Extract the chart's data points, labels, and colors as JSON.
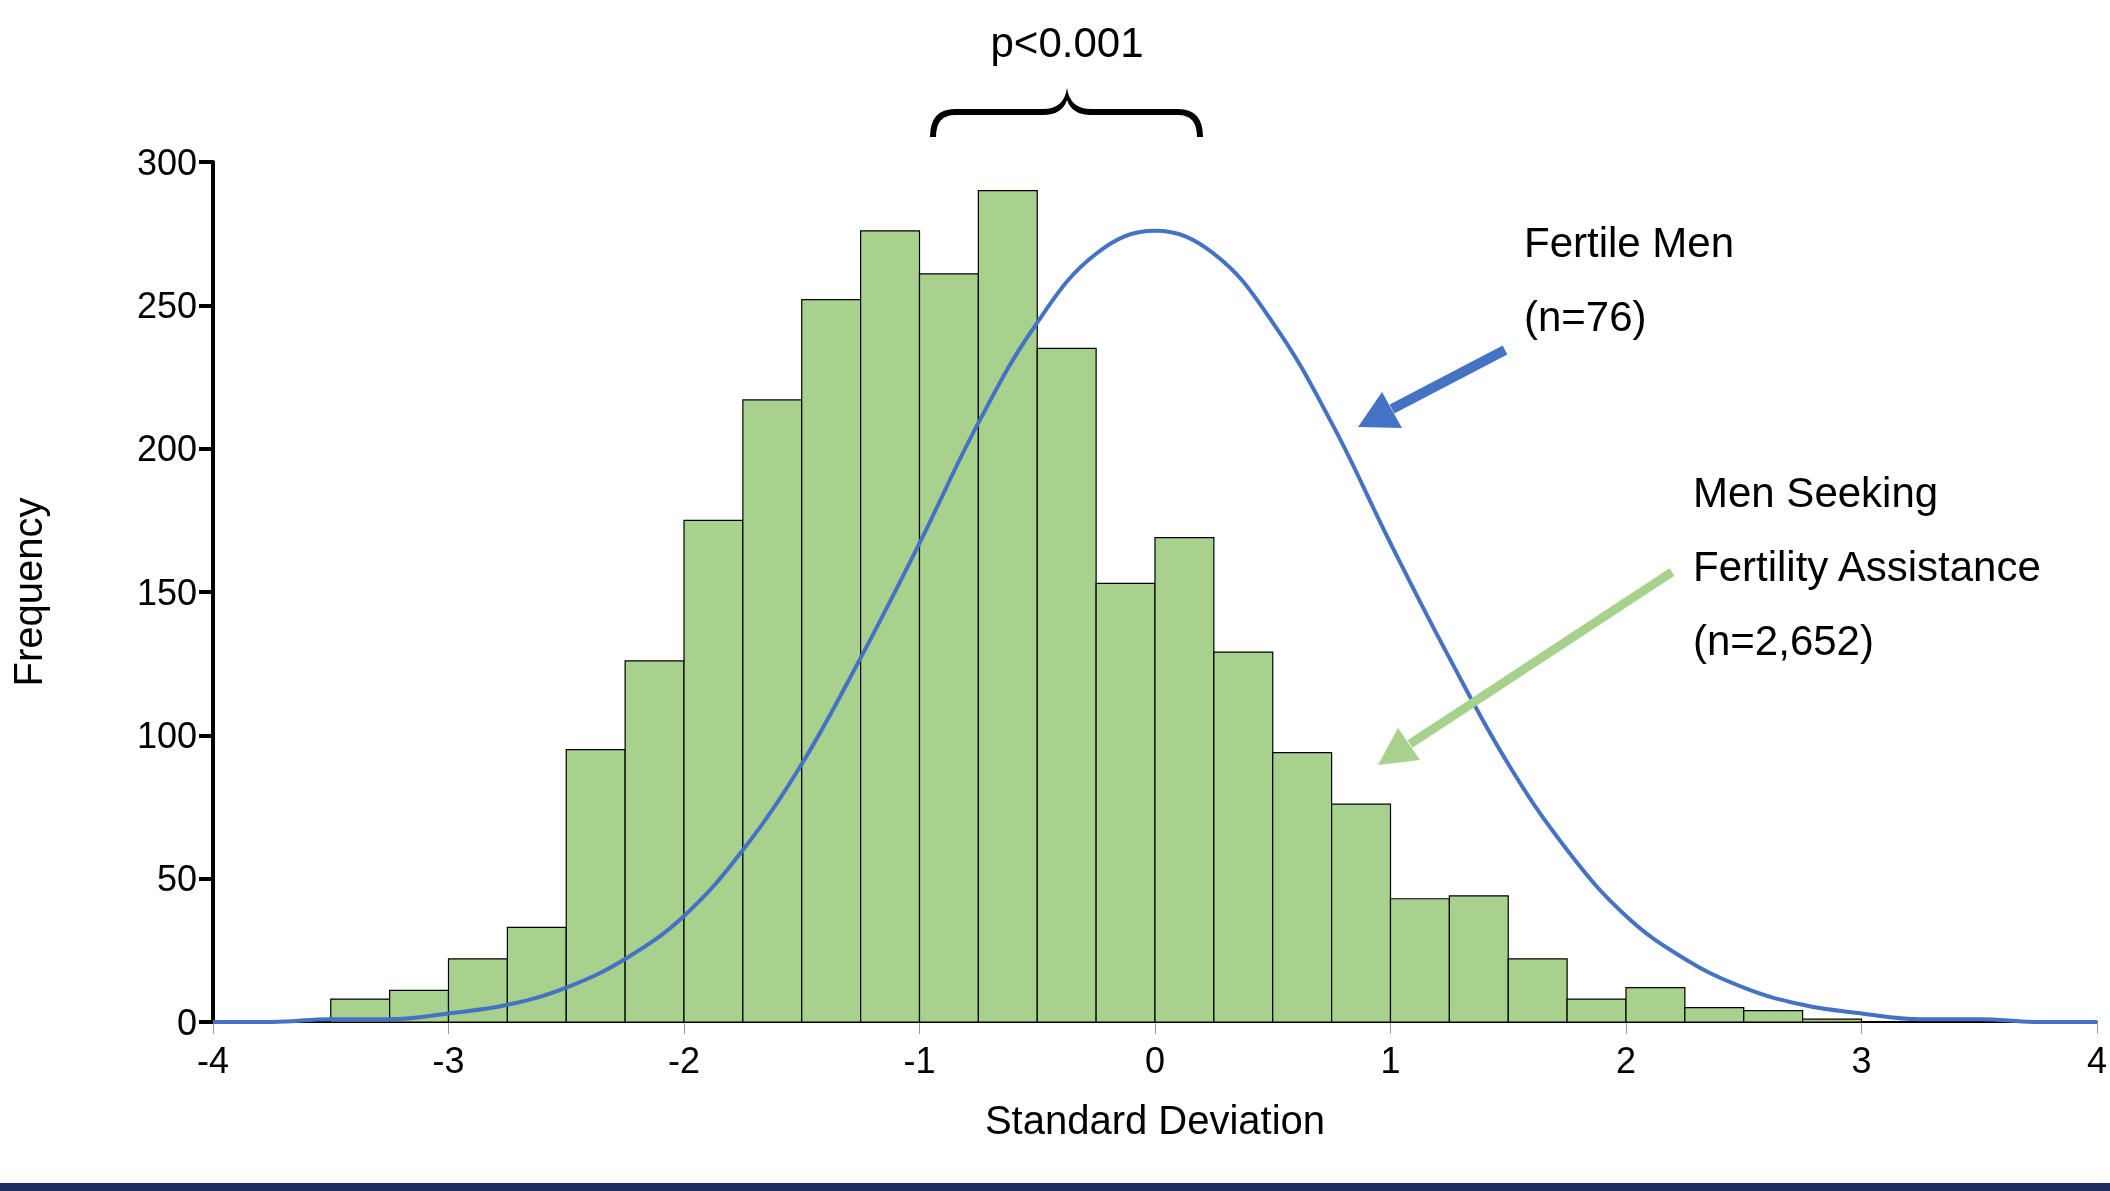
{
  "chart_data": {
    "type": "histogram",
    "xlabel": "Standard Deviation",
    "ylabel": "Frequency",
    "xlim": [
      -4,
      4
    ],
    "xticks": [
      -4,
      -3,
      -2,
      -1,
      0,
      1,
      2,
      3,
      4
    ],
    "ylim": [
      0,
      300
    ],
    "yticks": [
      0,
      50,
      100,
      150,
      200,
      250,
      300
    ],
    "annotations": [
      "p<0.001",
      "Fertile Men\n(n=76)",
      "Men Seeking\nFertility Assistance\n(n=2,652)"
    ],
    "series": [
      {
        "color": "#a9d18e",
        "bins": [
          -4,
          -3.75,
          -3.5,
          -3.25,
          -3,
          -2.75,
          -2.5,
          -2.25,
          -2,
          -1.75,
          -1.5,
          -1.25,
          -1,
          -0.75,
          -0.5,
          -0.25,
          0,
          0.25,
          0.5,
          0.75,
          1,
          1.25,
          1.5,
          1.75,
          2,
          2.25,
          2.5,
          2.75,
          3,
          3.25,
          3.5,
          3.75,
          4
        ],
        "values": [
          0,
          0,
          8,
          11,
          22,
          33,
          95,
          126,
          175,
          217,
          252,
          276,
          261,
          290,
          235,
          153,
          169,
          129,
          94,
          76,
          43,
          44,
          22,
          8,
          12,
          5,
          4,
          1,
          0,
          0,
          0,
          0
        ]
      },
      {
        "type": "line",
        "color": "#4472c4",
        "x": [
          -4,
          -3.75,
          -3.5,
          -3.25,
          -3,
          -2.75,
          -2.5,
          -2.25,
          -2,
          -1.75,
          -1.5,
          -1.25,
          -1,
          -0.75,
          -0.5,
          -0.25,
          0,
          0.25,
          0.5,
          0.75,
          1,
          1.25,
          1.5,
          1.75,
          2,
          2.25,
          2.5,
          2.75,
          3,
          3.25,
          3.5,
          3.75,
          4
        ],
        "values": [
          0,
          0,
          1,
          1,
          3,
          6,
          12,
          22,
          37,
          60,
          90,
          127,
          167,
          209,
          244,
          268,
          276,
          268,
          244,
          209,
          167,
          127,
          90,
          60,
          37,
          22,
          12,
          6,
          3,
          1,
          1,
          0,
          0
        ]
      }
    ]
  }
}
